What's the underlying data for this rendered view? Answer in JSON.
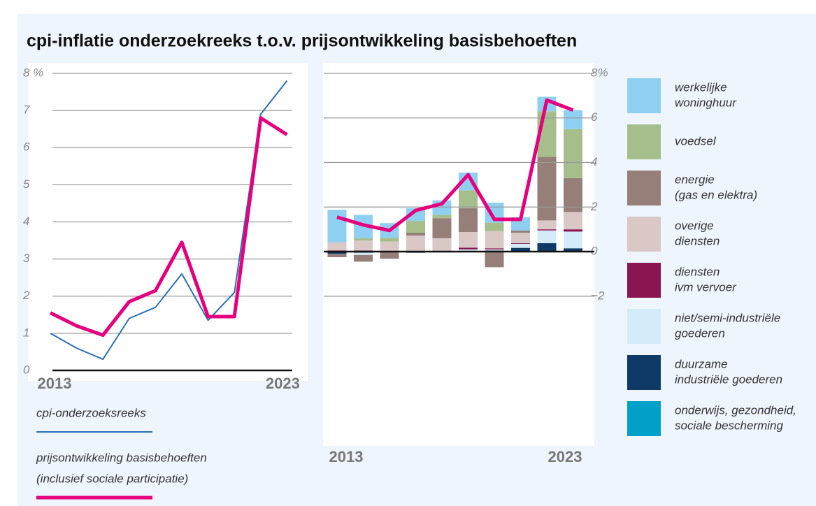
{
  "chart_data": [
    {
      "type": "line",
      "title": "cpi-inflatie onderzoekreeks t.o.v. prijsontwikkeling basisbehoeften",
      "categories": [
        "2013",
        null,
        null,
        null,
        null,
        null,
        null,
        null,
        null,
        "2023"
      ],
      "ylim": [
        0,
        8
      ],
      "yticks": [
        {
          "value": 8,
          "label": "8 %"
        },
        7,
        6,
        5,
        4,
        3,
        2,
        1,
        0
      ],
      "grid": true,
      "series": [
        {
          "name": [
            "cpi-onderzoeksreeks"
          ],
          "color": "#2a6ebb",
          "values": [
            1.0,
            0.6,
            0.3,
            1.4,
            1.7,
            2.6,
            1.35,
            2.1,
            6.9,
            7.8
          ]
        },
        {
          "name": [
            "prijsontwikkeling basisbehoeften",
            "(inclusief sociale participatie)"
          ],
          "color": "#e5007d",
          "values": [
            1.55,
            1.2,
            0.95,
            1.85,
            2.15,
            3.45,
            1.45,
            1.45,
            6.8,
            6.35
          ]
        }
      ]
    },
    {
      "type": "stacked_bar",
      "categories": [
        "2013",
        null,
        null,
        null,
        null,
        null,
        null,
        null,
        null,
        "2023"
      ],
      "ylim": [
        -2,
        8
      ],
      "yticks": [
        {
          "value": 8,
          "label": "8%"
        },
        6,
        4,
        2,
        0,
        {
          "value": -2,
          "label": "−2"
        }
      ],
      "grid": true,
      "series": [
        {
          "name": [
            "werkelijke",
            "woninghuur"
          ],
          "color": "#8fd0f2",
          "values": [
            1.46,
            1.05,
            0.66,
            0.57,
            0.65,
            0.8,
            0.9,
            0.6,
            0.65,
            0.85
          ]
        },
        {
          "name": [
            "voedsel"
          ],
          "color": "#a6be8c",
          "values": [
            0,
            0.1,
            0.17,
            0.53,
            0.15,
            0.8,
            0.38,
            0,
            2.05,
            2.2
          ]
        },
        {
          "name": [
            "energie",
            "(gas en elektra)"
          ],
          "color": "#957f78",
          "values": [
            -0.15,
            -0.3,
            -0.3,
            0.13,
            0.9,
            1.07,
            -0.7,
            0.1,
            2.85,
            1.52
          ]
        },
        {
          "name": [
            "overige",
            "diensten"
          ],
          "color": "#d9c8c6",
          "values": [
            0.37,
            0.45,
            0.45,
            0.72,
            0.6,
            0.7,
            0.77,
            0.47,
            0.4,
            0.78
          ]
        },
        {
          "name": [
            "diensten",
            "ivm vervoer"
          ],
          "color": "#8a1550",
          "values": [
            0.05,
            0.05,
            0,
            0,
            0,
            0.08,
            0.05,
            0.03,
            0.05,
            0.1
          ]
        },
        {
          "name": [
            "niet/semi-industriële",
            "goederen"
          ],
          "color": "#d4ecfa",
          "values": [
            0,
            -0.1,
            0,
            0,
            -0.05,
            0.08,
            0.05,
            0.18,
            0.57,
            0.75
          ]
        },
        {
          "name": [
            "duurzame",
            "industriële goederen"
          ],
          "color": "#0f3a68",
          "values": [
            -0.1,
            -0.05,
            -0.02,
            -0.05,
            0,
            0.02,
            0.05,
            0.17,
            0.38,
            0.15
          ]
        },
        {
          "name": [
            "onderwijs, gezondheid,",
            "sociale bescherming"
          ],
          "color": "#00a0c8",
          "values": [
            0,
            0,
            0,
            0,
            0,
            0,
            0,
            0,
            0,
            0
          ]
        }
      ],
      "line": {
        "color": "#e5007d",
        "values": [
          1.55,
          1.2,
          0.95,
          1.85,
          2.15,
          3.45,
          1.45,
          1.45,
          6.8,
          6.35
        ]
      }
    }
  ]
}
